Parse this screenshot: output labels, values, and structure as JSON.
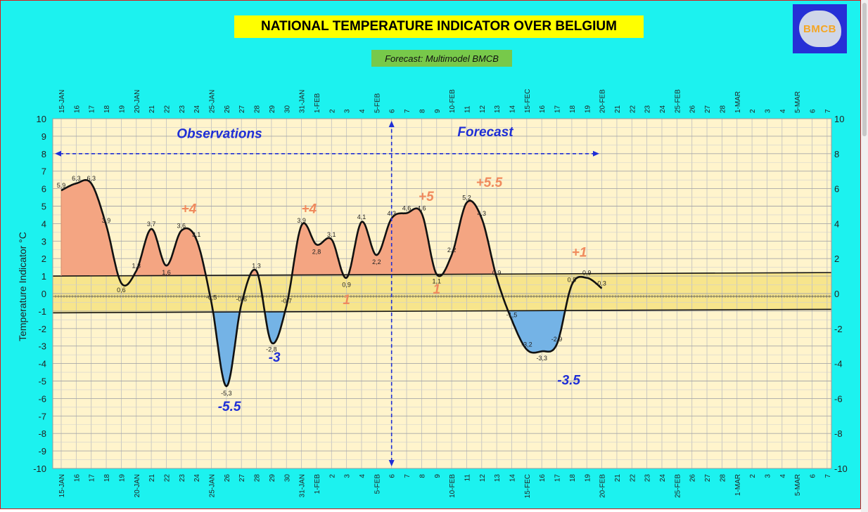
{
  "header": {
    "title": "NATIONAL TEMPERATURE INDICATOR OVER  BELGIUM",
    "subtitle": "Forecast:  Multimodel BMCB",
    "logo_text": "BMCB"
  },
  "colors": {
    "background": "#1cf2ef",
    "plot_background": "#fff4cc",
    "normal_band": "#f7e58c",
    "positive_fill": "#f4a582",
    "negative_fill": "#74b3e6",
    "curve": "#111111",
    "annotation_blue": "#1f2fd6",
    "annotation_orange": "#f08a5d",
    "title_box": "#ffff00",
    "subtitle_box": "#77c94a"
  },
  "chart_data": {
    "type": "line",
    "ylabel": "Temperature Indicator   °C",
    "ylim": [
      -10,
      10
    ],
    "yticks_left": [
      10,
      9,
      8,
      7,
      6,
      5,
      4,
      3,
      2,
      1,
      0,
      -1,
      -2,
      -3,
      -4,
      -5,
      -6,
      -7,
      -8,
      -9,
      -10
    ],
    "yticks_right": [
      10,
      8,
      6,
      4,
      2,
      0,
      -2,
      -4,
      -6,
      -8,
      -10
    ],
    "x_labels": [
      "15-JAN",
      "16",
      "17",
      "18",
      "19",
      "20-JAN",
      "21",
      "22",
      "23",
      "24",
      "25-JAN",
      "26",
      "27",
      "28",
      "29",
      "30",
      "31-JAN",
      "1-FEB",
      "2",
      "3",
      "4",
      "5-FEB",
      "6",
      "7",
      "8",
      "9",
      "10-FEB",
      "11",
      "12",
      "13",
      "14",
      "15-FEC",
      "16",
      "17",
      "18",
      "19",
      "20-FEB",
      "21",
      "22",
      "23",
      "24",
      "25-FEB",
      "26",
      "27",
      "28",
      "1-MAR",
      "2",
      "3",
      "4",
      "5-MAR",
      "6",
      "7"
    ],
    "normal_band": {
      "upper_start": 1,
      "upper_end": 1.2,
      "lower_start": -1.1,
      "lower_end": -0.9
    },
    "series": [
      {
        "values": [
          5.9,
          6.3,
          6.3,
          3.9,
          0.6,
          1.3,
          3.7,
          1.6,
          3.6,
          3.1,
          -0.5,
          -5.3,
          -0.6,
          1.3,
          -2.8,
          -0.7,
          3.9,
          2.8,
          3.1,
          0.9,
          4.1,
          2.2,
          4.3,
          4.6,
          4.6,
          1.1,
          2.2,
          5.2,
          4.3,
          0.9,
          -1.5,
          -3.2,
          -3.3,
          -2.9,
          0.5,
          0.9,
          0.3
        ],
        "labels": [
          "5,9",
          "6,3",
          "6,3",
          "3,9",
          "0,6",
          "1,3",
          "3,7",
          "1,6",
          "3,6",
          "3,1",
          "-0,5",
          "-5,3",
          "-0,6",
          "1,3",
          "-2,8",
          "-0,7",
          "3,9",
          "2,8",
          "3,1",
          "0,9",
          "4,1",
          "2,2",
          "4,3",
          "4,6",
          "4,6",
          "1,1",
          "2,2",
          "5,2",
          "4,3",
          "0,9",
          "-1,5",
          "-3,2",
          "-3,3",
          "-2,9",
          "0,5",
          "0,9",
          "0,3"
        ]
      }
    ],
    "section_labels": {
      "observations": "Observations",
      "forecast": "Forecast",
      "split_index": 22
    },
    "annotations": [
      {
        "text": "+4",
        "x_index": 8.5,
        "y": 4.6,
        "color": "orange"
      },
      {
        "text": "+4",
        "x_index": 16.5,
        "y": 4.6,
        "color": "orange"
      },
      {
        "text": "+5",
        "x_index": 24.3,
        "y": 5.3,
        "color": "orange"
      },
      {
        "text": "+5.5",
        "x_index": 28.5,
        "y": 6.1,
        "color": "orange"
      },
      {
        "text": "+1",
        "x_index": 34.5,
        "y": 2.1,
        "color": "orange"
      },
      {
        "text": "1",
        "x_index": 19.0,
        "y": -0.6,
        "color": "orange"
      },
      {
        "text": "1",
        "x_index": 25.0,
        "y": 0,
        "color": "orange"
      },
      {
        "text": "-5.5",
        "x_index": 11.2,
        "y": -6.7,
        "color": "blue"
      },
      {
        "text": "-3",
        "x_index": 14.2,
        "y": -3.9,
        "color": "blue"
      },
      {
        "text": "-3.5",
        "x_index": 33.8,
        "y": -5.2,
        "color": "blue"
      }
    ]
  }
}
